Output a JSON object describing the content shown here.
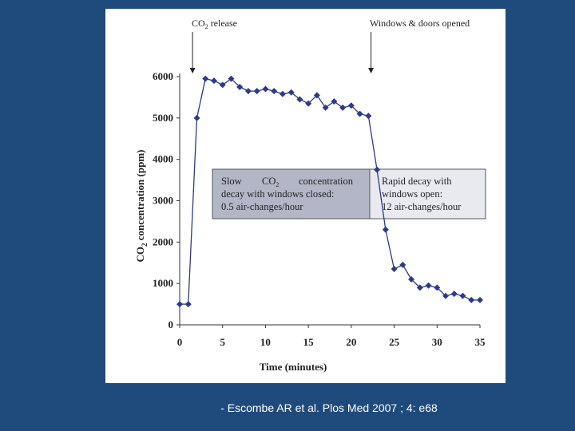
{
  "chart_data": {
    "type": "line",
    "title": "",
    "xlabel": "Time (minutes)",
    "ylabel": "CO2 concentration (ppm)",
    "ylabel_parts": {
      "main": "CO",
      "sub": "2",
      "rest": " concentration (ppm)"
    },
    "xlim": [
      0,
      35
    ],
    "ylim": [
      0,
      6000
    ],
    "xticks": [
      0,
      5,
      10,
      15,
      20,
      25,
      30,
      35
    ],
    "yticks": [
      0,
      1000,
      2000,
      3000,
      4000,
      5000,
      6000
    ],
    "series": [
      {
        "name": "CO2 concentration",
        "color": "#2b3a8c",
        "x": [
          0,
          1,
          2,
          3,
          4,
          5,
          6,
          7,
          8,
          9,
          10,
          11,
          12,
          13,
          14,
          15,
          16,
          17,
          18,
          19,
          20,
          21,
          22,
          23,
          24,
          25,
          26,
          27,
          28,
          29,
          30,
          31,
          32,
          33,
          34,
          35
        ],
        "y": [
          500,
          500,
          5000,
          5950,
          5900,
          5800,
          5950,
          5750,
          5650,
          5650,
          5700,
          5650,
          5580,
          5620,
          5450,
          5350,
          5550,
          5250,
          5400,
          5250,
          5300,
          5100,
          5050,
          3750,
          2300,
          1350,
          1450,
          1100,
          900,
          950,
          900,
          700,
          750,
          700,
          600,
          600
        ]
      }
    ],
    "annotations": {
      "release": {
        "label_main": "CO",
        "label_sub": "2",
        "label_rest": " release",
        "x": 1.5
      },
      "opened": {
        "label": "Windows & doors opened",
        "x": 22.3
      },
      "box_closed": {
        "line1": "Slow CO2 concentration",
        "line1_parts": {
          "a": "Slow",
          "b": "CO",
          "sub": "2",
          "c": "concentration"
        },
        "line2": "decay with windows closed:",
        "line3": "0.5 air-changes/hour"
      },
      "box_open": {
        "line1": "Rapid decay with",
        "line2": "windows open:",
        "line3": "12 air-changes/hour"
      }
    }
  },
  "citation": "- Escombe AR et al. Plos Med 2007 ; 4: e68",
  "colors": {
    "background": "#1f4a7c",
    "line": "#2b3a8c",
    "box_closed": "#b3b6c6",
    "box_open": "#e9eaf0"
  }
}
